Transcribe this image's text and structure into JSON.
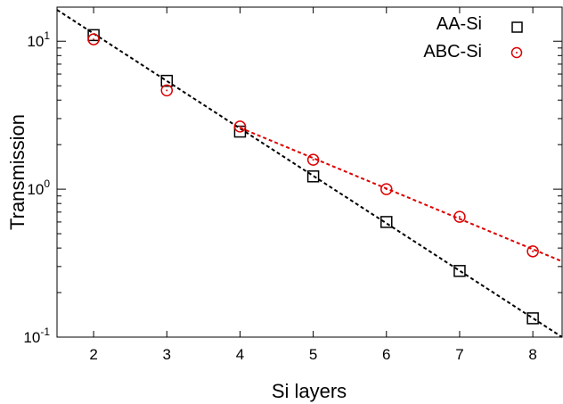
{
  "chart_data": {
    "type": "scatter",
    "xlabel": "Si layers",
    "ylabel": "Transmission",
    "x_scale": "linear",
    "y_scale": "log",
    "xlim": [
      1.5,
      8.4
    ],
    "ylim": [
      0.1,
      17
    ],
    "x_ticks": [
      "2",
      "3",
      "4",
      "5",
      "6",
      "7",
      "8"
    ],
    "y_ticks": [
      {
        "value": 0.1,
        "base": "10",
        "exp": "-1"
      },
      {
        "value": 1,
        "base": "10",
        "exp": "0"
      },
      {
        "value": 10,
        "base": "10",
        "exp": "1"
      }
    ],
    "legend_position": "top-right",
    "series": [
      {
        "name": "AA-Si",
        "marker": "square",
        "color": "#000000",
        "x": [
          2,
          3,
          4,
          5,
          6,
          7,
          8
        ],
        "y": [
          11.0,
          5.4,
          2.45,
          1.22,
          0.6,
          0.28,
          0.134
        ],
        "fit": {
          "x_range": [
            1.5,
            8.4
          ],
          "y_start": 16.3,
          "y_end": 0.1
        }
      },
      {
        "name": "ABC-Si",
        "marker": "circle",
        "color": "#dd0000",
        "x": [
          2,
          3,
          4,
          5,
          6,
          7,
          8
        ],
        "y": [
          10.3,
          4.65,
          2.65,
          1.58,
          1.0,
          0.65,
          0.38
        ],
        "fit": {
          "x_range": [
            4,
            8.4
          ],
          "y_start": 2.6,
          "y_end": 0.325
        }
      }
    ]
  }
}
